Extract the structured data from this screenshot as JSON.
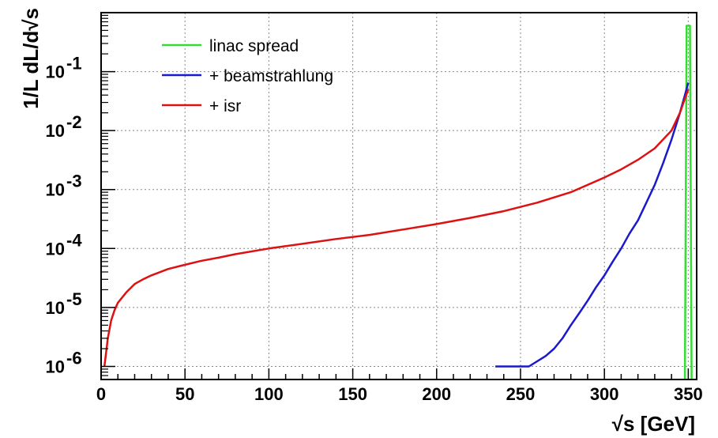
{
  "chart_data": {
    "type": "line",
    "xlabel": "√s [GeV]",
    "ylabel": "1/L dL/d√s",
    "xlim": [
      0,
      355
    ],
    "ylim": [
      6e-07,
      1.0
    ],
    "y_scale": "log",
    "grid": true,
    "legend_position": "top-left",
    "x_ticks": [
      0,
      50,
      100,
      150,
      200,
      250,
      300,
      350
    ],
    "y_ticks": [
      {
        "value": 1e-06,
        "base": "10",
        "exp": "-6"
      },
      {
        "value": 1e-05,
        "base": "10",
        "exp": "-5"
      },
      {
        "value": 0.0001,
        "base": "10",
        "exp": "-4"
      },
      {
        "value": 0.001,
        "base": "10",
        "exp": "-3"
      },
      {
        "value": 0.01,
        "base": "10",
        "exp": "-2"
      },
      {
        "value": 0.1,
        "base": "10",
        "exp": "-1"
      }
    ],
    "series": [
      {
        "name": "linac spread",
        "color": "#33dd33",
        "x": [
          348,
          349,
          350,
          351,
          352
        ],
        "y": [
          0,
          0.6,
          0.6,
          0.6,
          0
        ]
      },
      {
        "name": "+ beamstrahlung",
        "color": "#1a1acc",
        "x": [
          235,
          245,
          255,
          265,
          270,
          275,
          280,
          285,
          290,
          295,
          300,
          305,
          310,
          315,
          320,
          325,
          330,
          335,
          340,
          345,
          348,
          350
        ],
        "y": [
          1e-06,
          1e-06,
          1e-06,
          1.5e-06,
          2e-06,
          3e-06,
          5e-06,
          8e-06,
          1.3e-05,
          2.2e-05,
          3.5e-05,
          6e-05,
          0.0001,
          0.00018,
          0.0003,
          0.0006,
          0.0012,
          0.0028,
          0.007,
          0.02,
          0.04,
          0.065
        ]
      },
      {
        "name": "+ isr",
        "color": "#dd1111",
        "x": [
          2,
          4,
          6,
          8,
          10,
          15,
          20,
          25,
          30,
          40,
          50,
          60,
          70,
          80,
          100,
          120,
          140,
          160,
          180,
          200,
          220,
          240,
          260,
          280,
          300,
          310,
          320,
          330,
          340,
          345,
          348,
          350
        ],
        "y": [
          1e-06,
          3e-06,
          6e-06,
          9e-06,
          1.2e-05,
          1.8e-05,
          2.5e-05,
          3e-05,
          3.5e-05,
          4.5e-05,
          5.3e-05,
          6.2e-05,
          7e-05,
          8e-05,
          0.0001,
          0.00012,
          0.000145,
          0.00017,
          0.00021,
          0.00026,
          0.00033,
          0.00043,
          0.0006,
          0.0009,
          0.0016,
          0.0022,
          0.0032,
          0.005,
          0.01,
          0.02,
          0.035,
          0.05
        ]
      }
    ]
  }
}
